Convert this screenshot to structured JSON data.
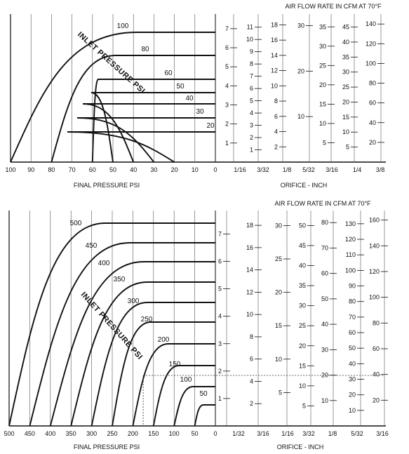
{
  "chart_data": [
    {
      "type": "line",
      "title": "AIR FLOW RATE IN CFM AT 70°F",
      "xlabel": "FINAL PRESSURE PSI",
      "scale_label": "ORIFICE - INCH",
      "curve_group_label": "INLET PRESSURE PSI",
      "x_ticks": [
        100,
        90,
        80,
        70,
        60,
        50,
        40,
        30,
        20,
        10,
        0
      ],
      "xlim": [
        100,
        0
      ],
      "series": [
        {
          "name": "100",
          "inlet": 100
        },
        {
          "name": "80",
          "inlet": 80
        },
        {
          "name": "60",
          "inlet": 60
        },
        {
          "name": "50",
          "inlet": 50
        },
        {
          "name": "40",
          "inlet": 40
        },
        {
          "name": "30",
          "inlet": 30
        },
        {
          "name": "20",
          "inlet": 20
        }
      ],
      "orifice_labels": [
        "1/16",
        "3/32",
        "1/8",
        "5/32",
        "3/16",
        "1/4",
        "3/8"
      ],
      "scales": [
        {
          "orifice": "1/16",
          "max": 7.4,
          "ticks": [
            1,
            2,
            3,
            4,
            5,
            6,
            7
          ]
        },
        {
          "orifice": "3/32",
          "max": 11.5,
          "ticks": [
            1,
            2,
            3,
            4,
            5,
            6,
            7,
            8,
            9,
            10,
            11
          ]
        },
        {
          "orifice": "1/8",
          "max": 18.5,
          "ticks": [
            2,
            4,
            6,
            8,
            10,
            12,
            14,
            16,
            18
          ]
        },
        {
          "orifice": "5/32",
          "max": 31,
          "ticks": [
            10,
            20,
            30
          ]
        },
        {
          "orifice": "3/16",
          "max": 36.5,
          "ticks": [
            5,
            10,
            15,
            20,
            25,
            30,
            35
          ]
        },
        {
          "orifice": "1/4",
          "max": 47,
          "ticks": [
            5,
            10,
            15,
            20,
            25,
            30,
            35,
            40,
            45
          ]
        },
        {
          "orifice": "3/8",
          "max": 143,
          "ticks": [
            20,
            40,
            60,
            80,
            100,
            120,
            140
          ]
        }
      ]
    },
    {
      "type": "line",
      "title": "AIR FLOW RATE IN CFM AT 70°F",
      "xlabel": "FINAL PRESSURE PSI",
      "scale_label": "ORIFICE - INCH",
      "curve_group_label": "INLET PRESSURE PSI",
      "x_ticks": [
        500,
        450,
        400,
        350,
        300,
        250,
        200,
        150,
        100,
        50,
        0
      ],
      "xlim": [
        500,
        0
      ],
      "series": [
        {
          "name": "500",
          "inlet": 500
        },
        {
          "name": "450",
          "inlet": 450
        },
        {
          "name": "400",
          "inlet": 400
        },
        {
          "name": "350",
          "inlet": 350
        },
        {
          "name": "300",
          "inlet": 300
        },
        {
          "name": "250",
          "inlet": 250
        },
        {
          "name": "200",
          "inlet": 200
        },
        {
          "name": "150",
          "inlet": 150
        },
        {
          "name": "100",
          "inlet": 100
        },
        {
          "name": "50",
          "inlet": 50
        }
      ],
      "orifice_labels": [
        "1/32",
        "3/16",
        "1/16",
        "3/32",
        "1/8",
        "5/32",
        "3/16"
      ],
      "scales": [
        {
          "orifice": "1/32",
          "max": 7.6,
          "ticks": [
            1,
            2,
            3,
            4,
            5,
            6,
            7
          ]
        },
        {
          "orifice": "3/16",
          "max": 18.7,
          "ticks": [
            2,
            4,
            6,
            8,
            10,
            12,
            14,
            16,
            18
          ]
        },
        {
          "orifice": "1/16",
          "max": 31.2,
          "ticks": [
            5,
            10,
            15,
            20,
            25,
            30
          ]
        },
        {
          "orifice": "3/32",
          "max": 52,
          "ticks": [
            5,
            10,
            15,
            20,
            25,
            30,
            35,
            40,
            45,
            50
          ]
        },
        {
          "orifice": "1/8",
          "max": 82,
          "ticks": [
            10,
            20,
            30,
            40,
            50,
            60,
            70,
            80
          ]
        },
        {
          "orifice": "5/32",
          "max": 134,
          "ticks": [
            10,
            20,
            30,
            40,
            50,
            60,
            70,
            80,
            90,
            100,
            110,
            120,
            130
          ]
        },
        {
          "orifice": "3/16",
          "max": 162,
          "ticks": [
            20,
            40,
            60,
            80,
            100,
            120,
            140,
            160
          ]
        }
      ],
      "example": {
        "final_pressure": 175,
        "inlet_pressure": 200,
        "flow_factor": 1.8
      }
    }
  ]
}
